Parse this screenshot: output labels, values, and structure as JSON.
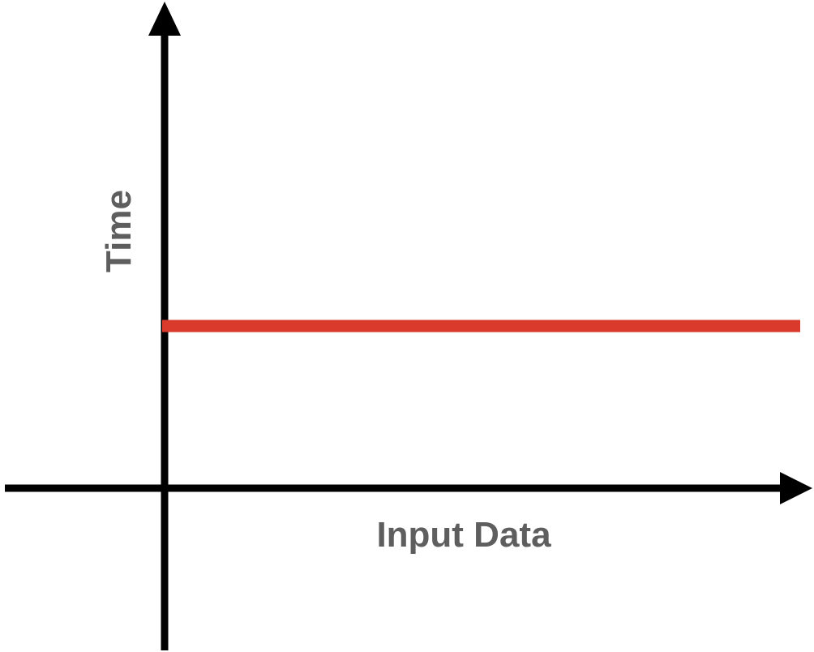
{
  "chart_data": {
    "type": "line",
    "title": "",
    "xlabel": "Input Data",
    "ylabel": "Time",
    "xlim": [
      -1,
      4
    ],
    "ylim": [
      -1,
      3
    ],
    "grid": false,
    "legend": "none",
    "series": [
      {
        "name": "time",
        "x": [
          0,
          3.92
        ],
        "y": [
          1,
          1
        ]
      }
    ]
  },
  "colors": {
    "axis": "#000000",
    "label": "#5e5e5e",
    "series": "#d93a2b",
    "background": "#ffffff"
  }
}
